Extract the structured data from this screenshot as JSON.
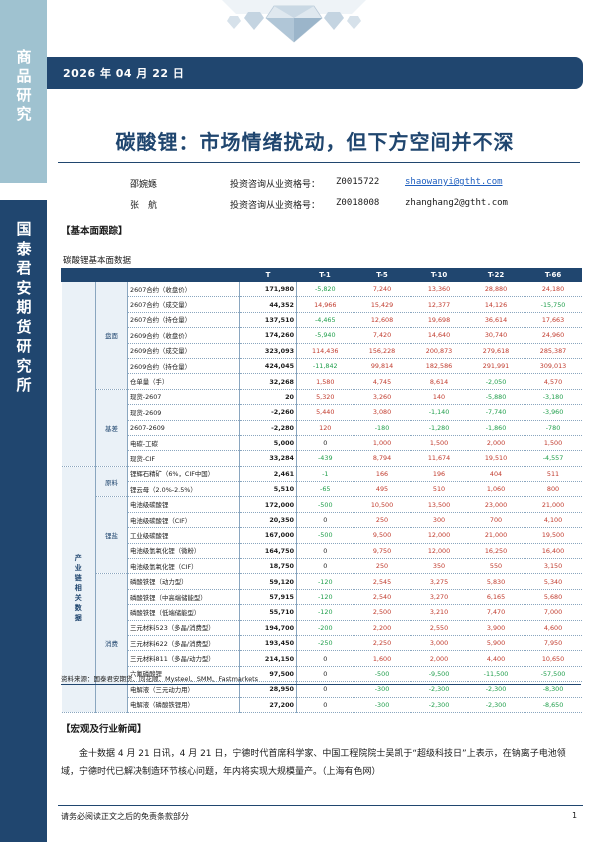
{
  "sidebar": {
    "top_label": "商品研究",
    "bottom_label": "国泰君安期货研究所"
  },
  "header": {
    "date": "2026 年 04 月 22 日"
  },
  "report": {
    "title": "碳酸锂：市场情绪扰动，但下方空间并不深"
  },
  "authors": [
    {
      "name": "邵婉嫕",
      "qual_label": "投资咨询从业资格号：",
      "qual_no": "Z0015722",
      "email": "shaowanyi@gtht.com"
    },
    {
      "name": "张　航",
      "qual_label": "投资咨询从业资格号：",
      "qual_no": "Z0018008",
      "email": "zhanghang2@gtht.com"
    }
  ],
  "sections": {
    "fundamentals_head": "【基本面跟踪】",
    "fundamentals_sub": "碳酸锂基本面数据",
    "macro_head": "【宏观及行业新闻】"
  },
  "table": {
    "headers": [
      "T",
      "T-1",
      "T-5",
      "T-10",
      "T-22",
      "T-66"
    ],
    "outer_group": "产业链相关数据",
    "groups": {
      "futures": "盘面",
      "basis": "基差",
      "raw": "原料",
      "salt": "锂盐",
      "consumption": "消费"
    },
    "rows": [
      {
        "label": "2607合约（收盘价）",
        "t": "171,980",
        "v": [
          "-5,820",
          "7,240",
          "13,360",
          "28,880",
          "24,180"
        ]
      },
      {
        "label": "2607合约（成交量）",
        "t": "44,352",
        "v": [
          "14,966",
          "15,429",
          "12,377",
          "14,126",
          "-15,750"
        ]
      },
      {
        "label": "2607合约（持仓量）",
        "t": "137,510",
        "v": [
          "-4,465",
          "12,608",
          "19,698",
          "36,614",
          "17,663"
        ]
      },
      {
        "label": "2609合约（收盘价）",
        "t": "174,260",
        "v": [
          "-5,940",
          "7,420",
          "14,640",
          "30,740",
          "24,960"
        ]
      },
      {
        "label": "2609合约（成交量）",
        "t": "323,093",
        "v": [
          "114,436",
          "156,228",
          "200,873",
          "279,618",
          "285,387"
        ]
      },
      {
        "label": "2609合约（持仓量）",
        "t": "424,045",
        "v": [
          "-11,842",
          "99,814",
          "182,586",
          "291,991",
          "309,013"
        ]
      },
      {
        "label": "仓单量（手）",
        "t": "32,268",
        "v": [
          "1,580",
          "4,745",
          "8,614",
          "-2,050",
          "4,570"
        ]
      },
      {
        "label": "现货-2607",
        "t": "20",
        "v": [
          "5,320",
          "3,260",
          "140",
          "-5,880",
          "-3,180"
        ]
      },
      {
        "label": "现货-2609",
        "t": "-2,260",
        "v": [
          "5,440",
          "3,080",
          "-1,140",
          "-7,740",
          "-3,960"
        ]
      },
      {
        "label": "2607-2609",
        "t": "-2,280",
        "v": [
          "120",
          "-180",
          "-1,280",
          "-1,860",
          "-780"
        ]
      },
      {
        "label": "电碳-工碳",
        "t": "5,000",
        "v": [
          "0",
          "1,000",
          "1,500",
          "2,000",
          "1,500"
        ]
      },
      {
        "label": "现货-CIF",
        "t": "33,284",
        "v": [
          "-439",
          "8,794",
          "11,674",
          "19,510",
          "-4,557"
        ]
      },
      {
        "label": "锂辉石精矿（6%，CIF中国）",
        "t": "2,461",
        "v": [
          "-1",
          "166",
          "196",
          "404",
          "511"
        ]
      },
      {
        "label": "锂云母（2.0%-2.5%）",
        "t": "5,510",
        "v": [
          "-65",
          "495",
          "510",
          "1,060",
          "800"
        ]
      },
      {
        "label": "电池级碳酸锂",
        "t": "172,000",
        "v": [
          "-500",
          "10,500",
          "13,500",
          "23,000",
          "21,000"
        ]
      },
      {
        "label": "电池级碳酸锂（CIF）",
        "t": "20,350",
        "v": [
          "0",
          "250",
          "300",
          "700",
          "4,100"
        ]
      },
      {
        "label": "工业级碳酸锂",
        "t": "167,000",
        "v": [
          "-500",
          "9,500",
          "12,000",
          "21,000",
          "19,500"
        ]
      },
      {
        "label": "电池级氢氧化锂（微粉）",
        "t": "164,750",
        "v": [
          "0",
          "9,750",
          "12,000",
          "16,250",
          "16,400"
        ]
      },
      {
        "label": "电池级氢氧化锂（CIF）",
        "t": "18,750",
        "v": [
          "0",
          "250",
          "350",
          "550",
          "3,150"
        ]
      },
      {
        "label": "磷酸铁锂（动力型）",
        "t": "59,120",
        "v": [
          "-120",
          "2,545",
          "3,275",
          "5,830",
          "5,340"
        ]
      },
      {
        "label": "磷酸铁锂（中高端储能型）",
        "t": "57,915",
        "v": [
          "-120",
          "2,540",
          "3,270",
          "6,165",
          "5,680"
        ]
      },
      {
        "label": "磷酸铁锂（低端储能型）",
        "t": "55,710",
        "v": [
          "-120",
          "2,500",
          "3,210",
          "7,470",
          "7,000"
        ]
      },
      {
        "label": "三元材料523（多晶/消费型）",
        "t": "194,700",
        "v": [
          "-200",
          "2,200",
          "2,550",
          "3,900",
          "4,600"
        ]
      },
      {
        "label": "三元材料622（多晶/消费型）",
        "t": "193,450",
        "v": [
          "-250",
          "2,250",
          "3,000",
          "5,900",
          "7,950"
        ]
      },
      {
        "label": "三元材料811（多晶/动力型）",
        "t": "214,150",
        "v": [
          "0",
          "1,600",
          "2,000",
          "4,400",
          "10,650"
        ]
      },
      {
        "label": "六氟磷酸锂",
        "t": "97,500",
        "v": [
          "0",
          "-500",
          "-9,500",
          "-11,500",
          "-57,500"
        ]
      },
      {
        "label": "电解液（三元动力用）",
        "t": "28,950",
        "v": [
          "0",
          "-300",
          "-2,300",
          "-2,300",
          "-8,300"
        ]
      },
      {
        "label": "电解液（磷酸铁锂用）",
        "t": "27,200",
        "v": [
          "0",
          "-300",
          "-2,300",
          "-2,300",
          "-8,650"
        ]
      }
    ]
  },
  "source_note": "资料来源：国泰君安期货、同花顺、Mysteel、SMM、Fastmarkets",
  "news": {
    "paragraph": "金十数据 4 月 21 日讯，4 月 21 日，宁德时代首席科学家、中国工程院院士吴凯于“超级科技日”上表示，在钠离子电池领域，宁德时代已解决制造环节核心问题，年内将实现大规模量产。（上海有色网）"
  },
  "footer": {
    "disclaimer": "请务必阅读正文之后的免责条款部分",
    "page_number": "1"
  },
  "colors": {
    "navy": "#20466f",
    "light_blue": "#9fc2d0",
    "positive": "#c0392b",
    "negative": "#1e9e4a"
  }
}
